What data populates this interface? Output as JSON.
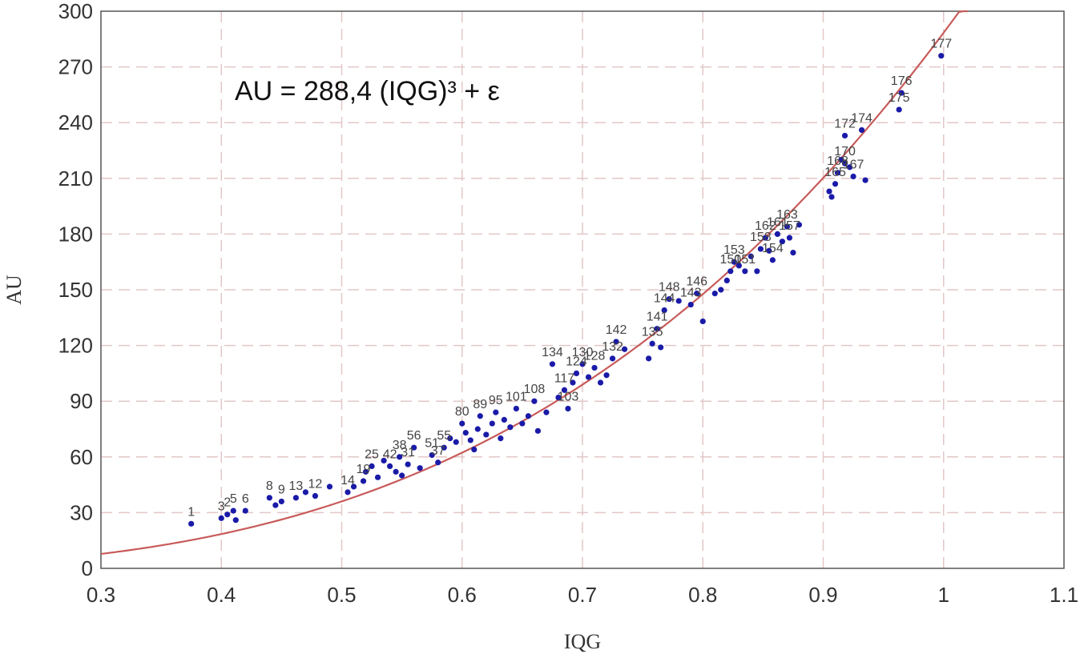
{
  "chart_data": {
    "type": "scatter",
    "title": "",
    "annotation": "AU = 288,4 (IQG)³ + ε",
    "xlabel": "IQG",
    "ylabel": "AU",
    "xlim": [
      0.3,
      1.1
    ],
    "ylim": [
      0,
      300
    ],
    "x_ticks": [
      0.3,
      0.4,
      0.5,
      0.6,
      0.7,
      0.8,
      0.9,
      1.0,
      1.1
    ],
    "x_tick_labels": [
      "0.3",
      "0.4",
      "0.5",
      "0.6",
      "0.7",
      "0.8",
      "0.9",
      "1",
      "1.1"
    ],
    "y_ticks": [
      0,
      30,
      60,
      90,
      120,
      150,
      180,
      210,
      240,
      270,
      300
    ],
    "y_tick_labels": [
      "0",
      "30",
      "60",
      "90",
      "120",
      "150",
      "180",
      "210",
      "240",
      "270",
      "300"
    ],
    "grid": true,
    "point_color": "#1a1aa8",
    "curve_color": "#c85a5a",
    "grid_color": "#e3c7c7",
    "fit": {
      "model": "cubic",
      "coefficient": 288.4,
      "xrange": [
        0.3,
        1.02
      ]
    },
    "points": [
      {
        "x": 0.375,
        "y": 24,
        "label": "1"
      },
      {
        "x": 0.4,
        "y": 27,
        "label": "3"
      },
      {
        "x": 0.405,
        "y": 29,
        "label": "2"
      },
      {
        "x": 0.41,
        "y": 31,
        "label": "5"
      },
      {
        "x": 0.412,
        "y": 26
      },
      {
        "x": 0.42,
        "y": 31,
        "label": "6"
      },
      {
        "x": 0.44,
        "y": 38,
        "label": "8"
      },
      {
        "x": 0.445,
        "y": 34
      },
      {
        "x": 0.45,
        "y": 36,
        "label": "9"
      },
      {
        "x": 0.462,
        "y": 38,
        "label": "13"
      },
      {
        "x": 0.47,
        "y": 41
      },
      {
        "x": 0.478,
        "y": 39,
        "label": "12"
      },
      {
        "x": 0.49,
        "y": 44
      },
      {
        "x": 0.505,
        "y": 41,
        "label": "14"
      },
      {
        "x": 0.51,
        "y": 44
      },
      {
        "x": 0.518,
        "y": 47,
        "label": "19"
      },
      {
        "x": 0.52,
        "y": 52
      },
      {
        "x": 0.525,
        "y": 55,
        "label": "25"
      },
      {
        "x": 0.53,
        "y": 49
      },
      {
        "x": 0.535,
        "y": 58
      },
      {
        "x": 0.54,
        "y": 55,
        "label": "42"
      },
      {
        "x": 0.545,
        "y": 52
      },
      {
        "x": 0.548,
        "y": 60,
        "label": "38"
      },
      {
        "x": 0.55,
        "y": 50
      },
      {
        "x": 0.555,
        "y": 56,
        "label": "31"
      },
      {
        "x": 0.56,
        "y": 65,
        "label": "56"
      },
      {
        "x": 0.565,
        "y": 54
      },
      {
        "x": 0.575,
        "y": 61,
        "label": "51"
      },
      {
        "x": 0.58,
        "y": 57,
        "label": "37"
      },
      {
        "x": 0.585,
        "y": 65,
        "label": "55"
      },
      {
        "x": 0.59,
        "y": 70
      },
      {
        "x": 0.595,
        "y": 68
      },
      {
        "x": 0.6,
        "y": 78,
        "label": "80"
      },
      {
        "x": 0.603,
        "y": 73
      },
      {
        "x": 0.607,
        "y": 69
      },
      {
        "x": 0.61,
        "y": 64
      },
      {
        "x": 0.613,
        "y": 75
      },
      {
        "x": 0.615,
        "y": 82,
        "label": "89"
      },
      {
        "x": 0.62,
        "y": 72
      },
      {
        "x": 0.625,
        "y": 78
      },
      {
        "x": 0.628,
        "y": 84,
        "label": "95"
      },
      {
        "x": 0.632,
        "y": 70
      },
      {
        "x": 0.635,
        "y": 80
      },
      {
        "x": 0.64,
        "y": 76
      },
      {
        "x": 0.645,
        "y": 86,
        "label": "101"
      },
      {
        "x": 0.65,
        "y": 78
      },
      {
        "x": 0.655,
        "y": 82
      },
      {
        "x": 0.66,
        "y": 90,
        "label": "108"
      },
      {
        "x": 0.663,
        "y": 74
      },
      {
        "x": 0.67,
        "y": 84
      },
      {
        "x": 0.675,
        "y": 110,
        "label": "134"
      },
      {
        "x": 0.68,
        "y": 92
      },
      {
        "x": 0.685,
        "y": 96,
        "label": "117"
      },
      {
        "x": 0.688,
        "y": 86,
        "label": "103"
      },
      {
        "x": 0.692,
        "y": 100
      },
      {
        "x": 0.695,
        "y": 105,
        "label": "124"
      },
      {
        "x": 0.7,
        "y": 110,
        "label": "130"
      },
      {
        "x": 0.705,
        "y": 103
      },
      {
        "x": 0.71,
        "y": 108,
        "label": "128"
      },
      {
        "x": 0.715,
        "y": 100
      },
      {
        "x": 0.72,
        "y": 104
      },
      {
        "x": 0.725,
        "y": 113,
        "label": "132"
      },
      {
        "x": 0.728,
        "y": 122,
        "label": "142"
      },
      {
        "x": 0.735,
        "y": 118
      },
      {
        "x": 0.755,
        "y": 113
      },
      {
        "x": 0.758,
        "y": 121,
        "label": "135"
      },
      {
        "x": 0.762,
        "y": 129,
        "label": "141"
      },
      {
        "x": 0.765,
        "y": 119
      },
      {
        "x": 0.768,
        "y": 139,
        "label": "144"
      },
      {
        "x": 0.772,
        "y": 145,
        "label": "148"
      },
      {
        "x": 0.78,
        "y": 144
      },
      {
        "x": 0.79,
        "y": 142,
        "label": "143"
      },
      {
        "x": 0.795,
        "y": 148,
        "label": "146"
      },
      {
        "x": 0.8,
        "y": 133
      },
      {
        "x": 0.81,
        "y": 148
      },
      {
        "x": 0.815,
        "y": 150
      },
      {
        "x": 0.82,
        "y": 155
      },
      {
        "x": 0.823,
        "y": 160,
        "label": "150"
      },
      {
        "x": 0.826,
        "y": 165,
        "label": "153"
      },
      {
        "x": 0.83,
        "y": 163
      },
      {
        "x": 0.835,
        "y": 160,
        "label": "151"
      },
      {
        "x": 0.84,
        "y": 168
      },
      {
        "x": 0.845,
        "y": 160
      },
      {
        "x": 0.848,
        "y": 172,
        "label": "158"
      },
      {
        "x": 0.852,
        "y": 178,
        "label": "162"
      },
      {
        "x": 0.855,
        "y": 171
      },
      {
        "x": 0.858,
        "y": 166,
        "label": "154"
      },
      {
        "x": 0.862,
        "y": 180,
        "label": "161"
      },
      {
        "x": 0.866,
        "y": 176
      },
      {
        "x": 0.87,
        "y": 184,
        "label": "163"
      },
      {
        "x": 0.872,
        "y": 178,
        "label": "157"
      },
      {
        "x": 0.875,
        "y": 170
      },
      {
        "x": 0.88,
        "y": 185
      },
      {
        "x": 0.905,
        "y": 203
      },
      {
        "x": 0.907,
        "y": 200
      },
      {
        "x": 0.91,
        "y": 207,
        "label": "165"
      },
      {
        "x": 0.912,
        "y": 213,
        "label": "168"
      },
      {
        "x": 0.915,
        "y": 220
      },
      {
        "x": 0.918,
        "y": 218,
        "label": "170"
      },
      {
        "x": 0.922,
        "y": 216
      },
      {
        "x": 0.925,
        "y": 211,
        "label": "167"
      },
      {
        "x": 0.918,
        "y": 233,
        "label": "172"
      },
      {
        "x": 0.932,
        "y": 236,
        "label": "174"
      },
      {
        "x": 0.935,
        "y": 209
      },
      {
        "x": 0.963,
        "y": 247,
        "label": "175"
      },
      {
        "x": 0.965,
        "y": 256,
        "label": "176"
      },
      {
        "x": 0.998,
        "y": 276,
        "label": "177"
      }
    ]
  }
}
